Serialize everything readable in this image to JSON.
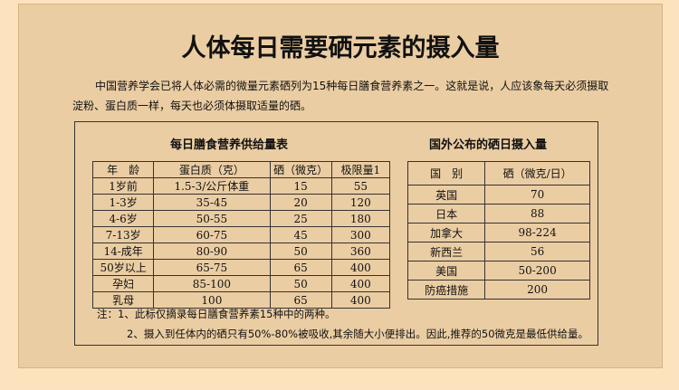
{
  "title": "人体每日需要硒元素的摄入量",
  "paragraph": "中国营养学会已将人体必需的微量元素硒列为15种每日膳食营养素之一。这就是说，人应该象每天必须摄取淀粉、蛋白质一样，每天也必须体摄取适量的硒。",
  "table1": {
    "title": "每日膳食营养供给量表",
    "headers": [
      "年　龄",
      "蛋白质（克）",
      "硒（微克）",
      "极限量1"
    ],
    "rows": [
      [
        "1岁前",
        "1.5-3/公斤体重",
        "15",
        "55"
      ],
      [
        "1-3岁",
        "35-45",
        "20",
        "120"
      ],
      [
        "4-6岁",
        "50-55",
        "25",
        "180"
      ],
      [
        "7-13岁",
        "60-75",
        "45",
        "300"
      ],
      [
        "14-成年",
        "80-90",
        "50",
        "360"
      ],
      [
        "50岁以上",
        "65-75",
        "65",
        "400"
      ],
      [
        "孕妇",
        "85-100",
        "50",
        "400"
      ],
      [
        "乳母",
        "100",
        "65",
        "400"
      ]
    ]
  },
  "table2": {
    "title": "国外公布的硒日摄入量",
    "headers": [
      "国　别",
      "硒（微克/日）"
    ],
    "rows": [
      [
        "英国",
        "70"
      ],
      [
        "日本",
        "88"
      ],
      [
        "加拿大",
        "98-224"
      ],
      [
        "新西兰",
        "56"
      ],
      [
        "美国",
        "50-200"
      ],
      [
        "防癌措施",
        "200"
      ]
    ]
  },
  "notes": [
    "注：1、此标仅摘录每日膳食营养素15种中的两种。",
    "2、摄入到任体内的硒只有50%-80%被吸收,其余随大小便排出。因此,推荐的50微克是最低供给量。"
  ]
}
